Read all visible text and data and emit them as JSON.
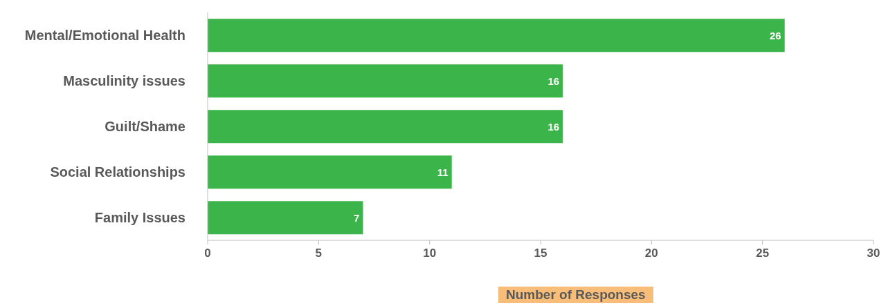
{
  "chart_data": {
    "type": "bar",
    "orientation": "horizontal",
    "xlabel": "Number of Responses",
    "categories": [
      "Mental/Emotional Health",
      "Masculinity issues",
      "Guilt/Shame",
      "Social Relationships",
      "Family Issues"
    ],
    "values": [
      26,
      16,
      16,
      11,
      7
    ],
    "color": "#3bb54a",
    "xlim": [
      0,
      30
    ],
    "xticks": [
      0,
      5,
      10,
      15,
      20,
      25,
      30
    ],
    "grid": false,
    "data_labels": true,
    "legend": false
  }
}
